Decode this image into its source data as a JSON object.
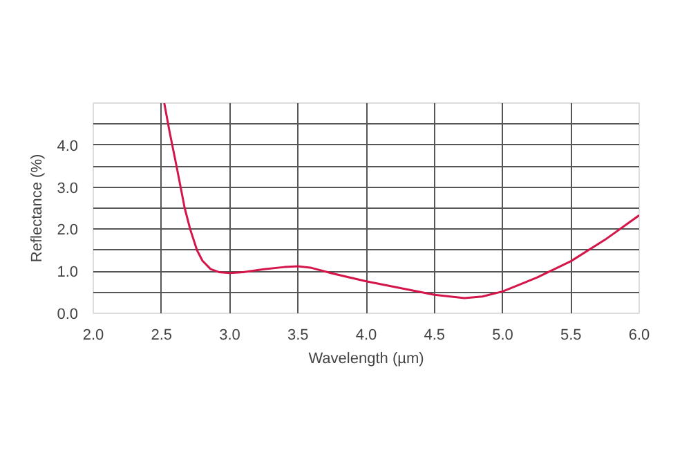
{
  "chart_data": {
    "type": "line",
    "xlabel": "Wavelength (µm)",
    "ylabel": "Reflectance (%)",
    "x": [
      2.52,
      2.56,
      2.61,
      2.67,
      2.71,
      2.76,
      2.8,
      2.86,
      2.92,
      3.0,
      3.1,
      3.25,
      3.4,
      3.5,
      3.6,
      3.75,
      4.0,
      4.25,
      4.5,
      4.72,
      4.85,
      5.0,
      5.25,
      5.5,
      5.75,
      6.0
    ],
    "series": [
      {
        "color": "#d4154a",
        "values": [
          5.0,
          4.3,
          3.5,
          2.5,
          2.0,
          1.5,
          1.25,
          1.05,
          0.98,
          0.96,
          0.98,
          1.05,
          1.1,
          1.12,
          1.08,
          0.95,
          0.76,
          0.6,
          0.44,
          0.36,
          0.4,
          0.52,
          0.85,
          1.24,
          1.75,
          2.33
        ]
      }
    ],
    "xlim": [
      2.0,
      6.0
    ],
    "ylim": [
      0.0,
      5.0
    ],
    "xticks": [
      {
        "value": 2.0,
        "label": "2.0"
      },
      {
        "value": 2.5,
        "label": "2.5"
      },
      {
        "value": 3.0,
        "label": "3.0"
      },
      {
        "value": 3.5,
        "label": "3.5"
      },
      {
        "value": 4.0,
        "label": "4.0"
      },
      {
        "value": 4.5,
        "label": "4.5"
      },
      {
        "value": 5.0,
        "label": "5.0"
      },
      {
        "value": 5.5,
        "label": "5.5"
      },
      {
        "value": 6.0,
        "label": "6.0"
      }
    ],
    "yticks": [
      {
        "value": 0.0,
        "label": "0.0"
      },
      {
        "value": 0.5,
        "label": null
      },
      {
        "value": 1.0,
        "label": "1.0"
      },
      {
        "value": 1.5,
        "label": null
      },
      {
        "value": 2.0,
        "label": "2.0"
      },
      {
        "value": 2.5,
        "label": null
      },
      {
        "value": 3.0,
        "label": "3.0"
      },
      {
        "value": 3.5,
        "label": null
      },
      {
        "value": 4.0,
        "label": "4.0"
      },
      {
        "value": 4.5,
        "label": null
      }
    ],
    "grid": true,
    "marker": "none",
    "line_style": "solid"
  }
}
